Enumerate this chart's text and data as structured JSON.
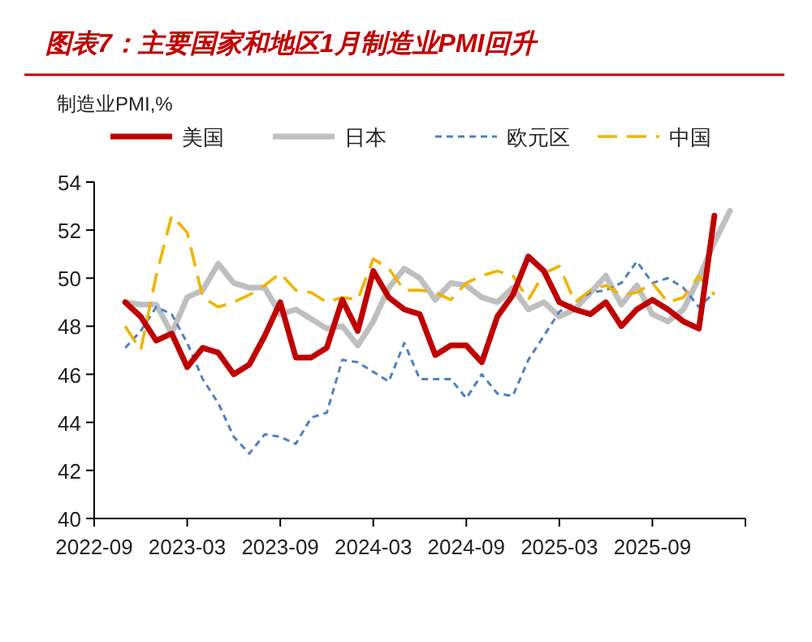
{
  "chart_data": {
    "type": "line",
    "title": "图表7：主要国家和地区1月制造业PMI回升",
    "ylabel": "制造业PMI,%",
    "legend": "top",
    "grid": false,
    "marker": "none",
    "x": [
      "2022-11",
      "2022-12",
      "2023-01",
      "2023-02",
      "2023-03",
      "2023-04",
      "2023-05",
      "2023-06",
      "2023-07",
      "2023-08",
      "2023-09",
      "2023-10",
      "2023-11",
      "2023-12",
      "2024-01",
      "2024-02",
      "2024-03",
      "2024-04",
      "2024-05",
      "2024-06",
      "2024-07",
      "2024-08",
      "2024-09",
      "2024-10",
      "2024-11",
      "2024-12",
      "2025-01",
      "2025-02",
      "2025-03",
      "2025-04",
      "2025-05",
      "2025-06",
      "2025-07",
      "2025-08",
      "2025-09",
      "2025-10",
      "2025-11",
      "2025-12",
      "2026-01"
    ],
    "xlim": [
      "2022-09",
      "2026-03"
    ],
    "xticks": [
      {
        "value": "2022-09",
        "label": "2022-09"
      },
      {
        "value": "2023-03",
        "label": "2023-03"
      },
      {
        "value": "2023-09",
        "label": "2023-09"
      },
      {
        "value": "2024-03",
        "label": "2024-03"
      },
      {
        "value": "2024-09",
        "label": "2024-09"
      },
      {
        "value": "2025-03",
        "label": "2025-03"
      },
      {
        "value": "2025-09",
        "label": "2025-09"
      },
      {
        "value": "2026-03",
        "label": null
      }
    ],
    "ylim": [
      40,
      54
    ],
    "yticks": [
      40,
      42,
      44,
      46,
      48,
      50,
      52,
      54
    ],
    "series": [
      {
        "name": "美国",
        "color": "#c00000",
        "line_style": "solid",
        "values": [
          49.0,
          48.4,
          47.4,
          47.7,
          46.3,
          47.1,
          46.9,
          46.0,
          46.4,
          47.6,
          49.0,
          46.7,
          46.7,
          47.1,
          49.1,
          47.8,
          50.3,
          49.2,
          48.7,
          48.5,
          46.8,
          47.2,
          47.2,
          46.5,
          48.4,
          49.3,
          50.9,
          50.3,
          49.0,
          48.7,
          48.5,
          49.0,
          48.0,
          48.7,
          49.1,
          48.7,
          48.2,
          47.9,
          52.6
        ]
      },
      {
        "name": "日本",
        "color": "#bfbfbf",
        "line_style": "solid",
        "x": [
          "2022-11",
          "2022-12",
          "2023-01",
          "2023-02",
          "2023-03",
          "2023-04",
          "2023-05",
          "2023-06",
          "2023-07",
          "2023-08",
          "2023-09",
          "2023-10",
          "2023-11",
          "2023-12",
          "2024-01",
          "2024-02",
          "2024-03",
          "2024-04",
          "2024-05",
          "2024-06",
          "2024-07",
          "2024-08",
          "2024-09",
          "2024-10",
          "2024-11",
          "2024-12",
          "2025-01",
          "2025-02",
          "2025-03",
          "2025-04",
          "2025-05",
          "2025-06",
          "2025-07",
          "2025-08",
          "2025-09",
          "2025-10",
          "2025-11",
          "2025-12",
          "2026-01",
          "2026-02"
        ],
        "values": [
          49.0,
          48.9,
          48.9,
          47.7,
          49.2,
          49.5,
          50.6,
          49.8,
          49.6,
          49.6,
          48.5,
          48.7,
          48.3,
          47.9,
          48.0,
          47.2,
          48.2,
          49.6,
          50.4,
          50.0,
          49.1,
          49.8,
          49.7,
          49.2,
          49.0,
          49.6,
          48.7,
          49.0,
          48.4,
          48.7,
          49.4,
          50.1,
          48.9,
          49.7,
          48.5,
          48.2,
          48.7,
          50.0,
          51.5,
          52.8
        ]
      },
      {
        "name": "欧元区",
        "color": "#4f81bd",
        "line_style": "dotted",
        "values": [
          47.1,
          47.8,
          48.8,
          48.5,
          47.3,
          45.8,
          44.8,
          43.4,
          42.7,
          43.5,
          43.4,
          43.1,
          44.2,
          44.4,
          46.6,
          46.5,
          46.1,
          45.7,
          47.3,
          45.8,
          45.8,
          45.8,
          45.0,
          46.0,
          45.2,
          45.1,
          46.6,
          47.6,
          48.6,
          49.0,
          49.4,
          49.5,
          49.8,
          50.7,
          49.8,
          50.0,
          49.6,
          48.8,
          49.4
        ]
      },
      {
        "name": "中国",
        "color": "#f0b400",
        "line_style": "dashed",
        "values": [
          48.0,
          47.0,
          50.1,
          52.6,
          51.9,
          49.2,
          48.8,
          49.0,
          49.3,
          49.7,
          50.2,
          49.5,
          49.4,
          49.0,
          49.2,
          49.1,
          50.8,
          50.4,
          49.5,
          49.5,
          49.4,
          49.1,
          49.8,
          50.1,
          50.3,
          50.1,
          49.1,
          50.2,
          50.5,
          49.0,
          49.5,
          49.7,
          49.3,
          49.4,
          49.8,
          49.0,
          49.2,
          50.1,
          49.3
        ]
      }
    ]
  }
}
